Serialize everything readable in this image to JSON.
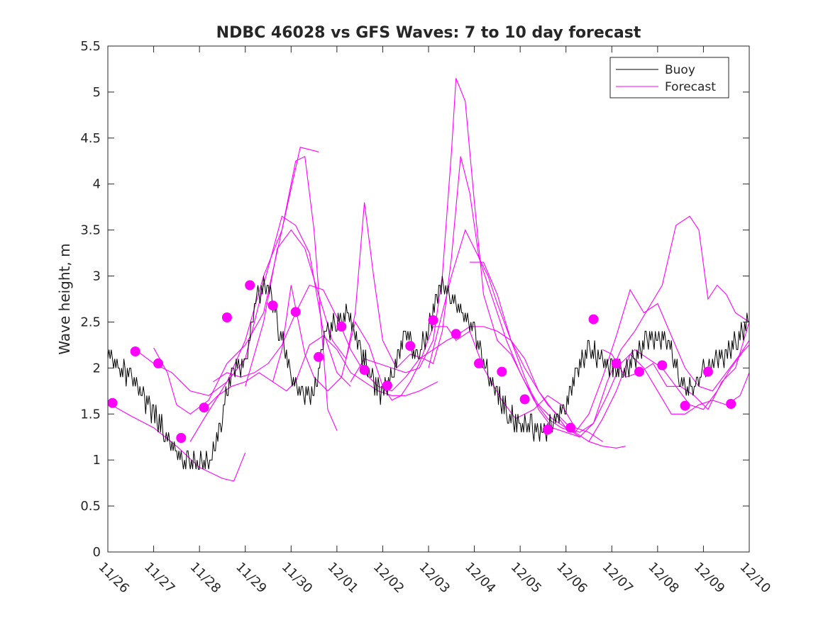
{
  "chart_data": {
    "type": "line",
    "title": "NDBC 46028 vs GFS Waves: 7 to 10 day forecast",
    "xlabel": "",
    "ylabel": "Wave height, m",
    "xlim": [
      0,
      14
    ],
    "ylim": [
      0,
      5.5
    ],
    "x_tick_labels": [
      "11/26",
      "11/27",
      "11/28",
      "11/29",
      "11/30",
      "12/01",
      "12/02",
      "12/03",
      "12/04",
      "12/05",
      "12/06",
      "12/07",
      "12/08",
      "12/09",
      "12/10"
    ],
    "y_ticks": [
      0,
      0.5,
      1,
      1.5,
      2,
      2.5,
      3,
      3.5,
      4,
      4.5,
      5,
      5.5
    ],
    "y_tick_labels": [
      "0",
      "0.5",
      "1",
      "1.5",
      "2",
      "2.5",
      "3",
      "3.5",
      "4",
      "4.5",
      "5",
      "5.5"
    ],
    "x_units": "days since 11/26",
    "legend": {
      "position": "top-right",
      "entries": [
        {
          "label": "Buoy",
          "color": "#000000"
        },
        {
          "label": "Forecast",
          "color": "#ff00ff"
        }
      ]
    },
    "buoy": {
      "name": "Buoy",
      "color": "#000000",
      "x": [
        0,
        0.25,
        0.5,
        0.75,
        1,
        1.25,
        1.5,
        1.75,
        2,
        2.25,
        2.5,
        2.75,
        3,
        3.25,
        3.5,
        3.75,
        4,
        4.25,
        4.5,
        4.75,
        5,
        5.25,
        5.5,
        5.75,
        6,
        6.25,
        6.5,
        6.75,
        7,
        7.25,
        7.5,
        7.75,
        8,
        8.25,
        8.5,
        8.75,
        9,
        9.25,
        9.5,
        9.75,
        10,
        10.25,
        10.5,
        10.75,
        11,
        11.25,
        11.5,
        11.75,
        12,
        12.25,
        12.5,
        12.75,
        13,
        13.25,
        13.5,
        13.75,
        14
      ],
      "y": [
        2.2,
        2.0,
        1.9,
        1.7,
        1.5,
        1.3,
        1.1,
        0.95,
        0.95,
        0.95,
        1.5,
        2.0,
        2.0,
        2.8,
        2.9,
        2.4,
        1.9,
        1.7,
        1.7,
        2.4,
        2.5,
        2.6,
        2.2,
        1.9,
        1.7,
        2.0,
        2.4,
        2.1,
        2.4,
        2.9,
        2.8,
        2.6,
        2.4,
        2.0,
        1.7,
        1.5,
        1.35,
        1.35,
        1.3,
        1.4,
        1.6,
        2.0,
        2.2,
        2.1,
        2.0,
        1.95,
        2.1,
        2.3,
        2.35,
        2.25,
        1.85,
        1.75,
        1.95,
        2.1,
        2.15,
        2.3,
        2.5
      ]
    },
    "forecast_series": [
      {
        "name": "Forecast 1",
        "x": [
          0,
          0.5,
          1,
          1.5,
          2,
          2.5,
          2.75,
          3.0
        ],
        "y": [
          1.62,
          1.48,
          1.35,
          1.15,
          0.92,
          0.8,
          0.77,
          1.08
        ]
      },
      {
        "name": "Forecast 2",
        "x": [
          0.6,
          1.0,
          1.4,
          1.8,
          2.2,
          2.6,
          3.0,
          3.4,
          3.8,
          4.2,
          4.6
        ],
        "y": [
          2.2,
          2.05,
          1.95,
          1.75,
          1.7,
          1.85,
          2.3,
          3.0,
          3.5,
          4.4,
          4.35
        ]
      },
      {
        "name": "Forecast 3",
        "x": [
          1.0,
          1.3,
          1.5,
          1.8,
          2.2,
          2.6,
          3.0,
          3.4,
          3.8,
          4.1,
          4.3,
          4.5,
          4.8,
          5.0
        ],
        "y": [
          2.22,
          1.95,
          1.6,
          1.5,
          1.65,
          2.05,
          2.25,
          2.6,
          3.5,
          4.25,
          4.3,
          3.5,
          1.55,
          1.32
        ]
      },
      {
        "name": "Forecast 4",
        "x": [
          1.8,
          2.1,
          2.6,
          3.0,
          3.4,
          3.8,
          4.1,
          4.4,
          4.7,
          5.0,
          5.3
        ],
        "y": [
          1.2,
          1.45,
          1.85,
          2.1,
          2.9,
          3.65,
          3.55,
          3.25,
          2.4,
          1.95,
          1.8
        ]
      },
      {
        "name": "Forecast 5",
        "x": [
          2.0,
          2.2,
          2.4,
          2.7,
          3.0,
          3.3,
          3.6,
          3.9,
          4.1,
          4.4,
          4.7,
          5.0,
          5.3,
          5.6,
          5.9,
          6.2,
          6.5,
          6.8,
          7.2
        ],
        "y": [
          1.55,
          1.6,
          1.7,
          1.8,
          1.85,
          1.95,
          1.85,
          1.75,
          1.85,
          2.25,
          2.35,
          2.2,
          1.95,
          1.85,
          1.75,
          1.7,
          1.7,
          1.75,
          1.85
        ]
      },
      {
        "name": "Forecast 6",
        "x": [
          2.3,
          2.6,
          2.9,
          3.2,
          3.5,
          3.8,
          4.1,
          4.4,
          4.7,
          5.0,
          5.3,
          5.6,
          5.9,
          6.2,
          6.5,
          6.8,
          7.1,
          7.4,
          7.6,
          7.9,
          8.2,
          8.5,
          8.8,
          9.1,
          9.4,
          9.6,
          9.8,
          10.0,
          10.2,
          10.5,
          10.8,
          11.1,
          11.3
        ],
        "y": [
          1.85,
          1.95,
          1.9,
          1.95,
          2.05,
          2.25,
          2.6,
          2.9,
          2.85,
          2.55,
          2.2,
          1.95,
          1.8,
          1.75,
          1.9,
          2.1,
          2.2,
          2.3,
          2.35,
          2.45,
          2.45,
          2.4,
          2.3,
          2.1,
          1.75,
          1.6,
          1.5,
          1.4,
          1.3,
          1.2,
          1.15,
          1.13,
          1.15
        ]
      },
      {
        "name": "Forecast 7",
        "x": [
          3.6,
          3.8,
          4.0,
          4.3,
          4.5,
          4.8,
          5.1,
          5.4,
          5.7,
          6.0,
          6.2,
          6.4,
          6.6,
          6.8,
          7.1,
          7.4,
          7.6,
          7.9,
          8.2,
          8.6,
          8.9,
          9.3,
          9.6,
          9.9,
          10.2,
          10.5,
          10.8
        ],
        "y": [
          1.85,
          2.2,
          2.9,
          2.15,
          1.9,
          1.75,
          1.9,
          2.5,
          2.25,
          1.8,
          1.65,
          1.7,
          1.85,
          2.05,
          2.45,
          2.45,
          2.3,
          2.4,
          2.0,
          1.65,
          1.45,
          1.55,
          1.7,
          1.6,
          1.35,
          1.3,
          1.2
        ]
      },
      {
        "name": "Forecast 8",
        "x": [
          3.0,
          3.4,
          3.7,
          4.0,
          4.3,
          4.6,
          4.9,
          5.2,
          5.4,
          5.6,
          5.8,
          6.0,
          6.3,
          6.6,
          6.9,
          7.1,
          7.3,
          7.5,
          7.7,
          7.9,
          8.1,
          8.3,
          8.5,
          8.8,
          9.1,
          9.4,
          9.7,
          10.0,
          10.3
        ],
        "y": [
          1.8,
          2.5,
          3.3,
          3.5,
          3.3,
          2.8,
          2.3,
          2.1,
          2.6,
          3.8,
          3.0,
          2.3,
          2.0,
          2.15,
          2.1,
          2.05,
          2.4,
          3.2,
          4.3,
          3.9,
          3.2,
          3.0,
          2.7,
          2.3,
          2.0,
          1.75,
          1.55,
          1.35,
          1.25
        ]
      },
      {
        "name": "Forecast 9",
        "x": [
          5.3,
          5.6,
          5.9,
          6.2,
          6.5,
          6.8,
          7.1,
          7.3,
          7.5,
          7.6,
          7.8,
          8.0,
          8.2,
          8.5,
          8.8,
          9.1,
          9.4,
          9.7,
          10.0,
          10.3,
          10.6,
          10.9,
          11.2,
          11.5,
          11.8,
          12.1,
          12.4,
          12.7,
          13.0,
          13.3,
          13.6,
          13.9,
          14.0
        ],
        "y": [
          1.85,
          2.1,
          2.05,
          2.0,
          1.95,
          2.0,
          2.3,
          3.0,
          4.35,
          5.15,
          4.9,
          3.8,
          2.8,
          2.3,
          2.15,
          1.85,
          1.6,
          1.45,
          1.35,
          1.3,
          1.4,
          1.7,
          2.05,
          2.2,
          2.1,
          2.0,
          1.8,
          1.6,
          1.55,
          1.75,
          2.0,
          2.2,
          2.25
        ]
      },
      {
        "name": "Forecast 10",
        "x": [
          7.0,
          7.2,
          7.5,
          7.8,
          8.1,
          8.4,
          8.7,
          9.0,
          9.3,
          9.6,
          9.9,
          10.2,
          10.5,
          10.8,
          11.1,
          11.4,
          11.7,
          12.0,
          12.3,
          12.6,
          12.9,
          13.2,
          13.5,
          13.8,
          14.0
        ],
        "y": [
          2.0,
          2.4,
          3.0,
          3.5,
          3.2,
          2.75,
          2.3,
          1.95,
          1.65,
          1.45,
          1.35,
          1.3,
          1.5,
          1.9,
          2.35,
          2.85,
          2.6,
          2.7,
          2.35,
          2.0,
          1.8,
          1.75,
          1.95,
          2.15,
          2.3
        ]
      },
      {
        "name": "Forecast 11",
        "x": [
          7.9,
          8.2,
          8.5,
          8.8,
          9.1,
          9.4,
          9.7,
          10.0,
          10.3,
          10.6,
          10.9,
          11.2,
          11.5,
          11.8,
          12.1,
          12.4,
          12.7,
          12.9,
          13.1,
          13.3,
          13.5,
          13.7,
          14.0
        ],
        "y": [
          3.15,
          3.15,
          2.8,
          2.3,
          1.9,
          1.55,
          1.35,
          1.3,
          1.25,
          1.4,
          1.85,
          2.2,
          2.4,
          2.65,
          2.9,
          3.55,
          3.65,
          3.5,
          2.75,
          2.9,
          2.8,
          2.6,
          2.5
        ]
      },
      {
        "name": "Forecast 12",
        "x": [
          10.5,
          10.8,
          11.1,
          11.4,
          11.7,
          12.0,
          12.3,
          12.6,
          12.9,
          13.2,
          13.5,
          13.8,
          14.0
        ],
        "y": [
          1.2,
          1.45,
          1.75,
          2.15,
          2.0,
          1.75,
          1.5,
          1.5,
          1.6,
          1.65,
          1.6,
          1.7,
          1.95
        ]
      },
      {
        "name": "Forecast 13",
        "x": [
          10.8,
          11.0,
          11.3,
          11.6,
          11.9,
          12.2,
          12.5,
          12.8,
          13.1,
          13.4,
          13.7,
          14.0
        ],
        "y": [
          2.2,
          2.15,
          1.9,
          1.95,
          2.05,
          1.8,
          1.8,
          1.7,
          1.55,
          1.85,
          2.0,
          2.5
        ]
      }
    ],
    "forecast_markers": {
      "x": [
        0.1,
        0.6,
        1.1,
        1.6,
        2.1,
        2.6,
        3.1,
        3.6,
        4.1,
        4.6,
        5.1,
        5.6,
        6.1,
        6.6,
        7.1,
        7.6,
        8.1,
        8.6,
        9.1,
        9.6,
        10.1,
        10.6,
        11.1,
        11.6,
        12.1,
        12.6,
        13.1,
        13.6
      ],
      "y": [
        1.62,
        2.18,
        2.05,
        1.24,
        1.57,
        2.55,
        2.9,
        2.68,
        2.61,
        2.12,
        2.45,
        1.98,
        1.81,
        2.24,
        2.52,
        2.37,
        2.05,
        1.96,
        1.66,
        1.33,
        1.35,
        2.53,
        2.05,
        1.96,
        2.03,
        1.59,
        1.96,
        1.61
      ]
    }
  }
}
